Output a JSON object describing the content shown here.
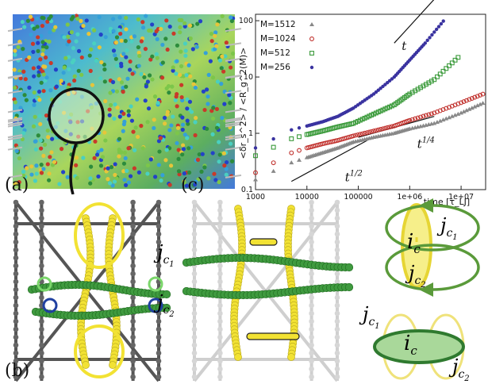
{
  "panels": {
    "a": "(a)",
    "b": "(b)",
    "c": "(c)"
  },
  "colors": {
    "M1512": "#888888",
    "M1024": "#c0302c",
    "M512": "#3a9a3a",
    "M256": "#3a33a0",
    "yellow_ring": "#f2e233",
    "green_ring": "#5a9a3a"
  },
  "chart_data": {
    "type": "scatter",
    "ylabel": "<δr_s^2> / <R_g^2(M)>",
    "xlabel": "time [τ_LJ]",
    "xscale": "log",
    "yscale": "log",
    "xlim": [
      1000,
      30000000
    ],
    "ylim": [
      0.1,
      130
    ],
    "x_ticks": [
      "1000",
      "10000",
      "100000",
      "1e+06",
      "1e+07"
    ],
    "y_ticks": [
      "0.1",
      "1",
      "10",
      "100"
    ],
    "legend": "top-left",
    "series": [
      {
        "name": "M=1512",
        "marker": "triangle",
        "color": "#888888",
        "x": [
          1000,
          5000,
          10000,
          20000,
          40000,
          80000,
          200000,
          500000,
          1000000,
          3000000,
          10000000,
          30000000
        ],
        "y": [
          0.15,
          0.3,
          0.37,
          0.45,
          0.55,
          0.7,
          0.85,
          1.0,
          1.2,
          1.5,
          2.3,
          3.6
        ]
      },
      {
        "name": "M=1024",
        "marker": "circle-open",
        "color": "#c0302c",
        "x": [
          1000,
          5000,
          10000,
          20000,
          40000,
          80000,
          200000,
          500000,
          1000000,
          3000000,
          10000000,
          30000000
        ],
        "y": [
          0.2,
          0.45,
          0.55,
          0.65,
          0.75,
          0.9,
          1.1,
          1.35,
          1.7,
          2.3,
          3.5,
          5.2
        ]
      },
      {
        "name": "M=512",
        "marker": "square-open",
        "color": "#3a9a3a",
        "x": [
          1000,
          5000,
          10000,
          20000,
          40000,
          80000,
          200000,
          500000,
          1000000,
          3000000,
          10000000
        ],
        "y": [
          0.4,
          0.8,
          0.95,
          1.1,
          1.3,
          1.5,
          2.2,
          3.2,
          5.0,
          9.0,
          25
        ]
      },
      {
        "name": "M=256",
        "marker": "circle",
        "color": "#3a33a0",
        "x": [
          1000,
          5000,
          10000,
          20000,
          40000,
          80000,
          200000,
          500000,
          1000000,
          2000000,
          5000000
        ],
        "y": [
          0.55,
          1.15,
          1.35,
          1.6,
          2.0,
          2.8,
          5.0,
          10,
          20,
          40,
          110
        ]
      }
    ],
    "guides": [
      {
        "label": "t",
        "from": [
          500000,
          40
        ],
        "to": [
          5000000,
          400
        ]
      },
      {
        "label": "t^{1/2}",
        "from": [
          5000,
          0.14
        ],
        "to": [
          150000,
          0.75
        ]
      },
      {
        "label": "t^{1/4}",
        "from": [
          100000,
          0.85
        ],
        "to": [
          3000000,
          2.0
        ]
      }
    ]
  },
  "diagram_b": {
    "labels": {
      "jc1": "j",
      "jc1_sub": "c",
      "jc1_sub2": "1",
      "jc2": "j",
      "jc2_sub": "c",
      "jc2_sub2": "2"
    }
  },
  "diagram_c": {
    "ic": "i",
    "ic_sub": "c",
    "jc1": "j",
    "jc1_sub": "c",
    "jc1_sub2": "1",
    "jc2": "j",
    "jc2_sub": "c",
    "jc2_sub2": "2"
  }
}
